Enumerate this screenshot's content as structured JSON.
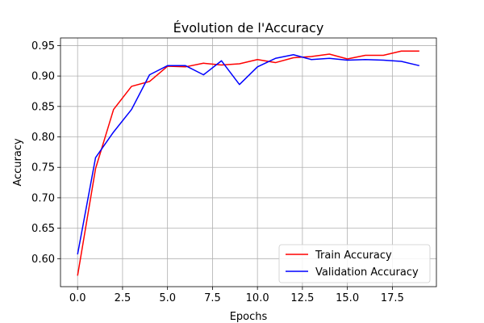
{
  "chart_data": {
    "type": "line",
    "title": "Évolution de l'Accuracy",
    "xlabel": "Epochs",
    "ylabel": "Accuracy",
    "xlim": [
      -0.95,
      19.95
    ],
    "ylim": [
      0.554,
      0.9625
    ],
    "xticks": [
      0.0,
      2.5,
      5.0,
      7.5,
      10.0,
      12.5,
      15.0,
      17.5
    ],
    "xtick_labels": [
      "0.0",
      "2.5",
      "5.0",
      "7.5",
      "10.0",
      "12.5",
      "15.0",
      "17.5"
    ],
    "yticks": [
      0.6,
      0.65,
      0.7,
      0.75,
      0.8,
      0.85,
      0.9,
      0.95
    ],
    "ytick_labels": [
      "0.60",
      "0.65",
      "0.70",
      "0.75",
      "0.80",
      "0.85",
      "0.90",
      "0.95"
    ],
    "grid": true,
    "legend_position": "bottom-right",
    "x": [
      0,
      1,
      2,
      3,
      4,
      5,
      6,
      7,
      8,
      9,
      10,
      11,
      12,
      13,
      14,
      15,
      16,
      17,
      18,
      19
    ],
    "series": [
      {
        "name": "Train Accuracy",
        "color": "#ff0000",
        "values": [
          0.572,
          0.748,
          0.845,
          0.883,
          0.891,
          0.916,
          0.915,
          0.921,
          0.918,
          0.92,
          0.927,
          0.922,
          0.93,
          0.932,
          0.936,
          0.928,
          0.934,
          0.934,
          0.941,
          0.941
        ]
      },
      {
        "name": "Validation Accuracy",
        "color": "#0000ff",
        "values": [
          0.607,
          0.766,
          0.808,
          0.845,
          0.902,
          0.917,
          0.917,
          0.902,
          0.925,
          0.886,
          0.915,
          0.929,
          0.935,
          0.927,
          0.929,
          0.926,
          0.927,
          0.926,
          0.924,
          0.917
        ]
      }
    ]
  }
}
